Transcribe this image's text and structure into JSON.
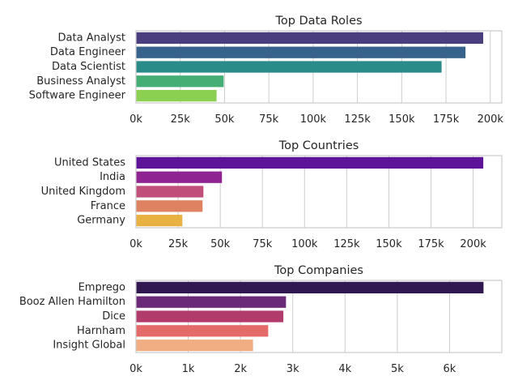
{
  "chart_data": [
    {
      "type": "bar",
      "orientation": "horizontal",
      "title": "Top Data Roles",
      "categories": [
        "Data Analyst",
        "Data Engineer",
        "Data Scientist",
        "Business Analyst",
        "Software Engineer"
      ],
      "values": [
        196000,
        186000,
        172500,
        49500,
        45500
      ],
      "xlim": [
        0,
        206500
      ],
      "xticks": [
        0,
        25000,
        50000,
        75000,
        100000,
        125000,
        150000,
        175000,
        200000
      ],
      "xtick_labels": [
        "0k",
        "25k",
        "50k",
        "75k",
        "100k",
        "125k",
        "150k",
        "175k",
        "200k"
      ],
      "colors": [
        "#4b3e7e",
        "#37628c",
        "#2a8c89",
        "#45ae75",
        "#8cd052"
      ],
      "grid": true
    },
    {
      "type": "bar",
      "orientation": "horizontal",
      "title": "Top Countries",
      "categories": [
        "United States",
        "India",
        "United Kingdom",
        "France",
        "Germany"
      ],
      "values": [
        206000,
        51000,
        40000,
        39500,
        27500
      ],
      "xlim": [
        0,
        217000
      ],
      "xticks": [
        0,
        25000,
        50000,
        75000,
        100000,
        125000,
        150000,
        175000,
        200000
      ],
      "xtick_labels": [
        "0k",
        "25k",
        "50k",
        "75k",
        "100k",
        "125k",
        "150k",
        "175k",
        "200k"
      ],
      "colors": [
        "#5e1499",
        "#8e2391",
        "#c0507a",
        "#de8262",
        "#e8b142"
      ],
      "grid": true
    },
    {
      "type": "bar",
      "orientation": "horizontal",
      "title": "Top Companies",
      "categories": [
        "Emprego",
        "Booz Allen Hamilton",
        "Dice",
        "Harnham",
        "Insight Global"
      ],
      "values": [
        6650,
        2870,
        2820,
        2530,
        2240
      ],
      "xlim": [
        0,
        7000
      ],
      "xticks": [
        0,
        1000,
        2000,
        3000,
        4000,
        5000,
        6000
      ],
      "xtick_labels": [
        "0k",
        "1k",
        "2k",
        "3k",
        "4k",
        "5k",
        "6k"
      ],
      "colors": [
        "#311850",
        "#6b2a77",
        "#b13c6b",
        "#e56a6a",
        "#f0ae82"
      ],
      "grid": true
    }
  ]
}
